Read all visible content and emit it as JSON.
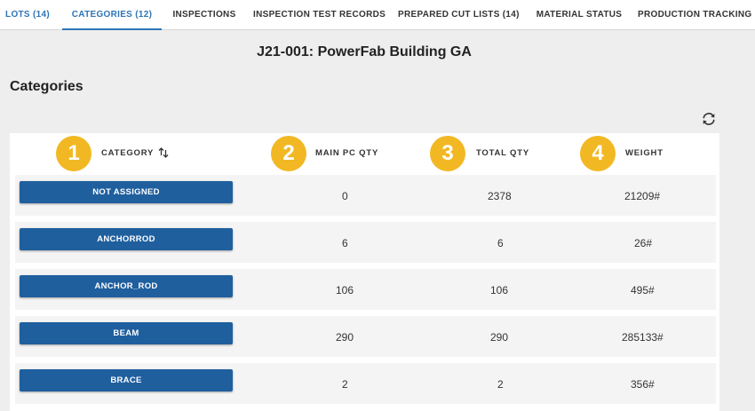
{
  "tabs": [
    {
      "label": "LOTS (14)",
      "style": "blue"
    },
    {
      "label": "CATEGORIES (12)",
      "style": "active"
    },
    {
      "label": "INSPECTIONS",
      "style": ""
    },
    {
      "label": "INSPECTION TEST RECORDS",
      "style": ""
    },
    {
      "label": "PREPARED CUT LISTS (14)",
      "style": ""
    },
    {
      "label": "MATERIAL STATUS",
      "style": ""
    },
    {
      "label": "PRODUCTION TRACKING",
      "style": ""
    }
  ],
  "page_title": "J21-001: PowerFab Building GA",
  "section_title": "Categories",
  "refresh_icon": "refresh-icon",
  "columns": [
    {
      "label": "CATEGORY",
      "badge": "1",
      "sortable": true
    },
    {
      "label": "MAIN PC QTY",
      "badge": "2"
    },
    {
      "label": "TOTAL QTY",
      "badge": "3"
    },
    {
      "label": "WEIGHT",
      "badge": "4"
    }
  ],
  "rows": [
    {
      "category": "NOT ASSIGNED",
      "main_pc_qty": "0",
      "total_qty": "2378",
      "weight": "21209#"
    },
    {
      "category": "ANCHORROD",
      "main_pc_qty": "6",
      "total_qty": "6",
      "weight": "26#"
    },
    {
      "category": "ANCHOR_ROD",
      "main_pc_qty": "106",
      "total_qty": "106",
      "weight": "495#"
    },
    {
      "category": "BEAM",
      "main_pc_qty": "290",
      "total_qty": "290",
      "weight": "285133#"
    },
    {
      "category": "BRACE",
      "main_pc_qty": "2",
      "total_qty": "2",
      "weight": "356#"
    }
  ],
  "colors": {
    "accent": "#2e75b6",
    "button": "#1f5f9e",
    "badge": "#f2b823"
  }
}
